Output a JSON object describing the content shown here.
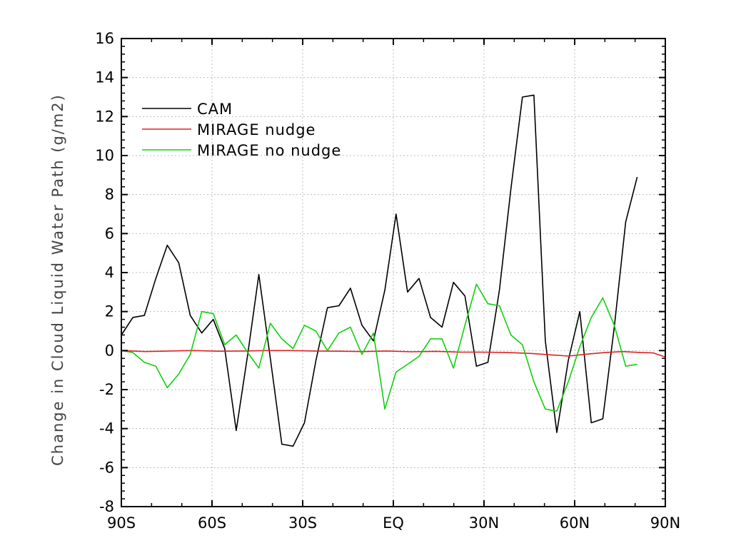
{
  "chart_data": {
    "type": "line",
    "title": "",
    "xlabel": "",
    "ylabel": "Change in Cloud Liquid Water Path (g/m2)",
    "xlim": [
      -90,
      90
    ],
    "ylim": [
      -8,
      16
    ],
    "grid": true,
    "legend_position": "top-left",
    "x_ticks": [
      {
        "value": -90,
        "label": "90S"
      },
      {
        "value": -60,
        "label": "60S"
      },
      {
        "value": -30,
        "label": "30S"
      },
      {
        "value": 0,
        "label": "EQ"
      },
      {
        "value": 30,
        "label": "30N"
      },
      {
        "value": 60,
        "label": "60N"
      },
      {
        "value": 90,
        "label": "90N"
      }
    ],
    "y_ticks": [
      -8,
      -6,
      -4,
      -2,
      0,
      2,
      4,
      6,
      8,
      10,
      12,
      14,
      16
    ],
    "series": [
      {
        "name": "CAM",
        "color": "#000000",
        "points": [
          [
            -90,
            0.8
          ],
          [
            -86.2,
            1.7
          ],
          [
            -82.4,
            1.8
          ],
          [
            -78.6,
            3.7
          ],
          [
            -74.8,
            5.4
          ],
          [
            -71,
            4.5
          ],
          [
            -67.2,
            1.8
          ],
          [
            -63.4,
            0.9
          ],
          [
            -59.6,
            1.6
          ],
          [
            -55.8,
            0.1
          ],
          [
            -52,
            -4.1
          ],
          [
            -48.2,
            -0.2
          ],
          [
            -44.5,
            3.9
          ],
          [
            -40.7,
            -0.4
          ],
          [
            -36.9,
            -4.8
          ],
          [
            -33.2,
            -4.9
          ],
          [
            -29.4,
            -3.7
          ],
          [
            -25.6,
            -0.5
          ],
          [
            -21.8,
            2.2
          ],
          [
            -18,
            2.3
          ],
          [
            -14.2,
            3.2
          ],
          [
            -10.4,
            1.3
          ],
          [
            -6.6,
            0.5
          ],
          [
            -2.8,
            3.1
          ],
          [
            0.9,
            7.0
          ],
          [
            4.7,
            3.0
          ],
          [
            8.5,
            3.7
          ],
          [
            12.3,
            1.7
          ],
          [
            16.1,
            1.2
          ],
          [
            19.9,
            3.5
          ],
          [
            23.7,
            2.8
          ],
          [
            27.5,
            -0.8
          ],
          [
            31.3,
            -0.6
          ],
          [
            35.1,
            3.1
          ],
          [
            38.9,
            8.3
          ],
          [
            42.7,
            13.0
          ],
          [
            46.5,
            13.1
          ],
          [
            50.3,
            0.5
          ],
          [
            54.1,
            -4.2
          ],
          [
            57.9,
            -0.5
          ],
          [
            61.7,
            2.0
          ],
          [
            65.5,
            -3.7
          ],
          [
            69.3,
            -3.5
          ],
          [
            73.1,
            1.2
          ],
          [
            76.9,
            6.6
          ],
          [
            80.7,
            8.9
          ]
        ]
      },
      {
        "name": "MIRAGE nudge",
        "color": "#e02020",
        "points": [
          [
            -90,
            0.0
          ],
          [
            -82,
            -0.05
          ],
          [
            -74,
            -0.02
          ],
          [
            -66,
            0.0
          ],
          [
            -58,
            -0.03
          ],
          [
            -50,
            -0.02
          ],
          [
            -42,
            0.0
          ],
          [
            -34,
            0.0
          ],
          [
            -26,
            -0.02
          ],
          [
            -18,
            -0.03
          ],
          [
            -10,
            -0.05
          ],
          [
            -2,
            -0.02
          ],
          [
            6,
            -0.06
          ],
          [
            14,
            -0.04
          ],
          [
            22,
            -0.08
          ],
          [
            30,
            -0.08
          ],
          [
            38,
            -0.1
          ],
          [
            46,
            -0.15
          ],
          [
            52,
            -0.22
          ],
          [
            58,
            -0.28
          ],
          [
            64,
            -0.18
          ],
          [
            70,
            -0.1
          ],
          [
            76,
            -0.05
          ],
          [
            82,
            -0.1
          ],
          [
            86,
            -0.12
          ],
          [
            90,
            -0.33
          ]
        ]
      },
      {
        "name": "MIRAGE no nudge",
        "color": "#10d010",
        "points": [
          [
            -90,
            0.0
          ],
          [
            -86.2,
            -0.1
          ],
          [
            -82.4,
            -0.6
          ],
          [
            -78.6,
            -0.8
          ],
          [
            -74.8,
            -1.9
          ],
          [
            -71,
            -1.2
          ],
          [
            -67.2,
            -0.2
          ],
          [
            -63.4,
            2.0
          ],
          [
            -59.6,
            1.9
          ],
          [
            -55.8,
            0.3
          ],
          [
            -52,
            0.8
          ],
          [
            -48.2,
            -0.1
          ],
          [
            -44.5,
            -0.9
          ],
          [
            -40.7,
            1.4
          ],
          [
            -36.9,
            0.6
          ],
          [
            -33.2,
            0.1
          ],
          [
            -29.4,
            1.3
          ],
          [
            -25.6,
            1.0
          ],
          [
            -21.8,
            0.0
          ],
          [
            -18,
            0.9
          ],
          [
            -14.2,
            1.2
          ],
          [
            -10.4,
            -0.2
          ],
          [
            -6.6,
            0.9
          ],
          [
            -2.8,
            -3.0
          ],
          [
            0.9,
            -1.1
          ],
          [
            4.7,
            -0.7
          ],
          [
            8.5,
            -0.3
          ],
          [
            12.3,
            0.6
          ],
          [
            16.1,
            0.6
          ],
          [
            19.9,
            -0.9
          ],
          [
            23.7,
            1.3
          ],
          [
            27.5,
            3.4
          ],
          [
            31.3,
            2.4
          ],
          [
            35.1,
            2.3
          ],
          [
            38.9,
            0.8
          ],
          [
            42.7,
            0.3
          ],
          [
            46.5,
            -1.6
          ],
          [
            50.3,
            -3.0
          ],
          [
            54.1,
            -3.1
          ],
          [
            57.9,
            -1.6
          ],
          [
            61.7,
            0.2
          ],
          [
            65.5,
            1.7
          ],
          [
            69.3,
            2.7
          ],
          [
            73.1,
            1.3
          ],
          [
            76.9,
            -0.8
          ],
          [
            80.7,
            -0.7
          ]
        ]
      }
    ]
  }
}
